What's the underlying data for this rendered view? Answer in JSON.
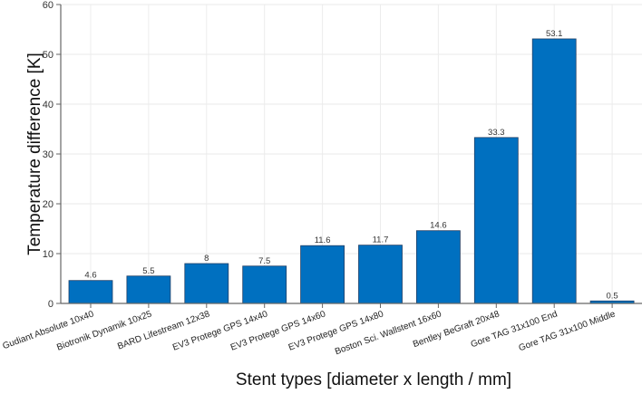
{
  "chart_data": {
    "type": "bar",
    "title": "",
    "xlabel": "Stent types [diameter x length / mm]",
    "ylabel": "Temperature difference [K]",
    "ylim": [
      0,
      60
    ],
    "yticks": [
      0,
      10,
      20,
      30,
      40,
      50,
      60
    ],
    "grid": true,
    "legend": null,
    "bar_color": "#0070C0",
    "categories": [
      "Gudiant Absolute 10x40",
      "Biotronik Dynamik 10x25",
      "BARD Lifestream 12x38",
      "EV3 Protege GPS 14x40",
      "EV3 Protege GPS 14x60",
      "EV3 Protege GPS 14x80",
      "Boston Sci. Wallstent 16x60",
      "Bentley BeGraft 20x48",
      "Gore TAG 31x100 End",
      "Gore TAG 31x100 Middle"
    ],
    "values": [
      4.6,
      5.5,
      8,
      7.5,
      11.6,
      11.7,
      14.6,
      33.3,
      53.1,
      0.5
    ],
    "value_labels": [
      "4.6",
      "5.5",
      "8",
      "7.5",
      "11.6",
      "11.7",
      "14.6",
      "33.3",
      "53.1",
      "0.5"
    ]
  }
}
